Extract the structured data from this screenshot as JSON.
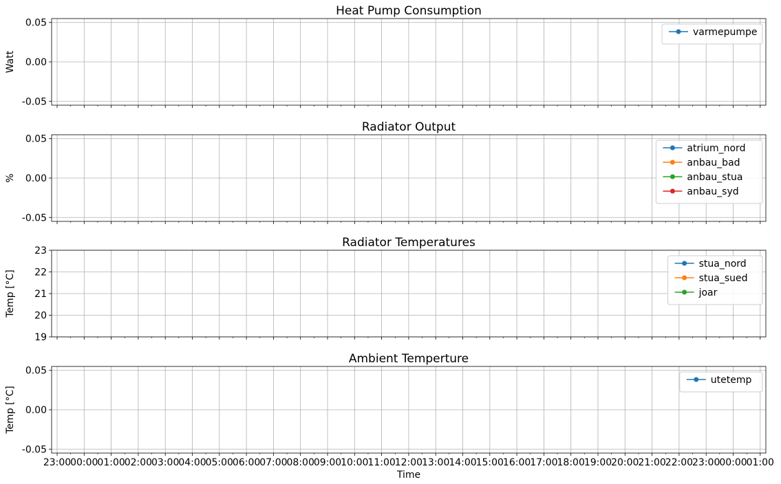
{
  "chart_data": [
    {
      "type": "line",
      "title": "Heat Pump Consumption",
      "ylabel": "Watt",
      "xlabel": "",
      "ylim": [
        -0.055,
        0.055
      ],
      "yticks": [
        "0.05",
        "0.00",
        "-0.05"
      ],
      "ytick_values": [
        0.05,
        0.0,
        -0.05
      ],
      "grid": true,
      "legend_position": "top-right",
      "series": [
        {
          "name": "varmepumpe",
          "color": "#1f77b4",
          "values": []
        }
      ]
    },
    {
      "type": "line",
      "title": "Radiator Output",
      "ylabel": "%",
      "xlabel": "",
      "ylim": [
        -0.055,
        0.055
      ],
      "yticks": [
        "0.05",
        "0.00",
        "-0.05"
      ],
      "ytick_values": [
        0.05,
        0.0,
        -0.05
      ],
      "grid": true,
      "legend_position": "top-right",
      "series": [
        {
          "name": "atrium_nord",
          "color": "#1f77b4",
          "values": []
        },
        {
          "name": "anbau_bad",
          "color": "#ff7f0e",
          "values": []
        },
        {
          "name": "anbau_stua",
          "color": "#2ca02c",
          "values": []
        },
        {
          "name": "anbau_syd",
          "color": "#d62728",
          "values": []
        }
      ]
    },
    {
      "type": "line",
      "title": "Radiator Temperatures",
      "ylabel": "Temp [°C]",
      "xlabel": "",
      "ylim": [
        19,
        23
      ],
      "yticks": [
        "23",
        "22",
        "21",
        "20",
        "19"
      ],
      "ytick_values": [
        23,
        22,
        21,
        20,
        19
      ],
      "grid": true,
      "legend_position": "top-right",
      "series": [
        {
          "name": "stua_nord",
          "color": "#1f77b4",
          "values": []
        },
        {
          "name": "stua_sued",
          "color": "#ff7f0e",
          "values": []
        },
        {
          "name": "joar",
          "color": "#2ca02c",
          "values": []
        }
      ]
    },
    {
      "type": "line",
      "title": "Ambient Temperture",
      "ylabel": "Temp [°C]",
      "xlabel": "Time",
      "ylim": [
        -0.055,
        0.055
      ],
      "yticks": [
        "0.05",
        "0.00",
        "-0.05"
      ],
      "ytick_values": [
        0.05,
        0.0,
        -0.05
      ],
      "grid": true,
      "legend_position": "top-right",
      "series": [
        {
          "name": "utetemp",
          "color": "#1f77b4",
          "values": []
        }
      ]
    }
  ],
  "x_ticks": [
    "23:00",
    "00:00",
    "01:00",
    "02:00",
    "03:00",
    "04:00",
    "05:00",
    "06:00",
    "07:00",
    "08:00",
    "09:00",
    "10:00",
    "11:00",
    "12:00",
    "13:00",
    "14:00",
    "15:00",
    "16:00",
    "17:00",
    "18:00",
    "19:00",
    "20:00",
    "21:00",
    "22:00",
    "23:00",
    "00:00",
    "01:00"
  ],
  "x_minor_ticks_per_major": 1
}
